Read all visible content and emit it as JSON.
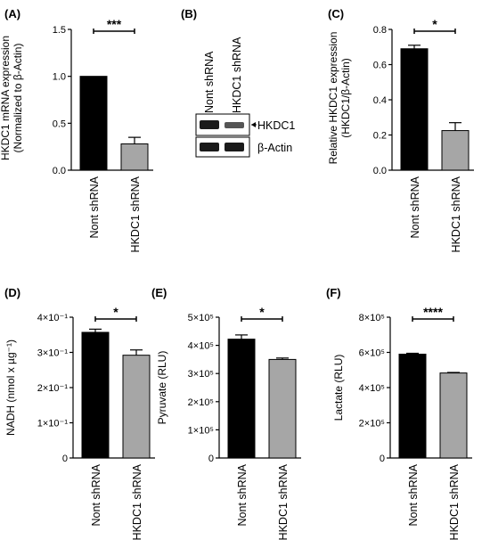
{
  "figure": {
    "blot": {
      "panel_label": "(B)",
      "lanes": [
        "Nont shRNA",
        "HKDC1 shRNA"
      ],
      "bands": [
        "HKDC1",
        "β-Actin"
      ]
    }
  },
  "chart_data": [
    {
      "id": "A",
      "panel_label": "(A)",
      "type": "bar",
      "categories": [
        "Nont shRNA",
        "HKDC1 shRNA"
      ],
      "values": [
        1.0,
        0.28
      ],
      "errors": [
        0,
        0.07
      ],
      "bar_colors": [
        "#000000",
        "#a6a6a6"
      ],
      "ylabel_lines": [
        "HKDC1 mRNA expression",
        "(Normalized to β-Actin)"
      ],
      "ylim": [
        0,
        1.5
      ],
      "ticks": [
        0,
        0.5,
        1,
        1.5
      ],
      "tick_labels": [
        "0.0",
        "0.5",
        "1.0",
        "1.5"
      ],
      "significance": "***",
      "grid": false
    },
    {
      "id": "C",
      "panel_label": "(C)",
      "type": "bar",
      "categories": [
        "Nont shRNA",
        "HKDC1 shRNA"
      ],
      "values": [
        0.69,
        0.225
      ],
      "errors": [
        0.02,
        0.045
      ],
      "bar_colors": [
        "#000000",
        "#a6a6a6"
      ],
      "ylabel_lines": [
        "Relative HKDC1 expression",
        "(HKDC1/β-Actin)"
      ],
      "ylim": [
        0,
        0.8
      ],
      "ticks": [
        0,
        0.2,
        0.4,
        0.6,
        0.8
      ],
      "tick_labels": [
        "0.0",
        "0.2",
        "0.4",
        "0.6",
        "0.8"
      ],
      "significance": "*",
      "grid": false
    },
    {
      "id": "D",
      "panel_label": "(D)",
      "type": "bar",
      "categories": [
        "Nont shRNA",
        "HKDC1 shRNA"
      ],
      "values": [
        0.357,
        0.292
      ],
      "errors": [
        0.009,
        0.015
      ],
      "bar_colors": [
        "#000000",
        "#a6a6a6"
      ],
      "ylabel": "NADH (nmol x µg⁻¹)",
      "ylim": [
        0,
        0.4
      ],
      "ticks": [
        0,
        0.1,
        0.2,
        0.3,
        0.4
      ],
      "tick_labels": [
        "0",
        "1×10⁻¹",
        "2×10⁻¹",
        "3×10⁻¹",
        "4×10⁻¹"
      ],
      "significance": "*",
      "grid": false
    },
    {
      "id": "E",
      "panel_label": "(E)",
      "type": "bar",
      "categories": [
        "Nont shRNA",
        "HKDC1 shRNA"
      ],
      "values": [
        422000,
        350000
      ],
      "errors": [
        15000,
        5000
      ],
      "bar_colors": [
        "#000000",
        "#a6a6a6"
      ],
      "ylabel": "Pyruvate (RLU)",
      "ylim": [
        0,
        500000
      ],
      "ticks": [
        0,
        100000,
        200000,
        300000,
        400000,
        500000
      ],
      "tick_labels": [
        "0",
        "1×10⁵",
        "2×10⁵",
        "3×10⁵",
        "4×10⁵",
        "5×10⁵"
      ],
      "significance": "*",
      "grid": false
    },
    {
      "id": "F",
      "panel_label": "(F)",
      "type": "bar",
      "categories": [
        "Nont shRNA",
        "HKDC1 shRNA"
      ],
      "values": [
        590000,
        483000
      ],
      "errors": [
        5000,
        3000
      ],
      "bar_colors": [
        "#000000",
        "#a6a6a6"
      ],
      "ylabel": "Lactate (RLU)",
      "ylim": [
        0,
        800000
      ],
      "ticks": [
        0,
        200000,
        400000,
        600000,
        800000
      ],
      "tick_labels": [
        "0",
        "2×10⁵",
        "4×10⁵",
        "6×10⁵",
        "8×10⁵"
      ],
      "significance": "****",
      "grid": false
    }
  ]
}
